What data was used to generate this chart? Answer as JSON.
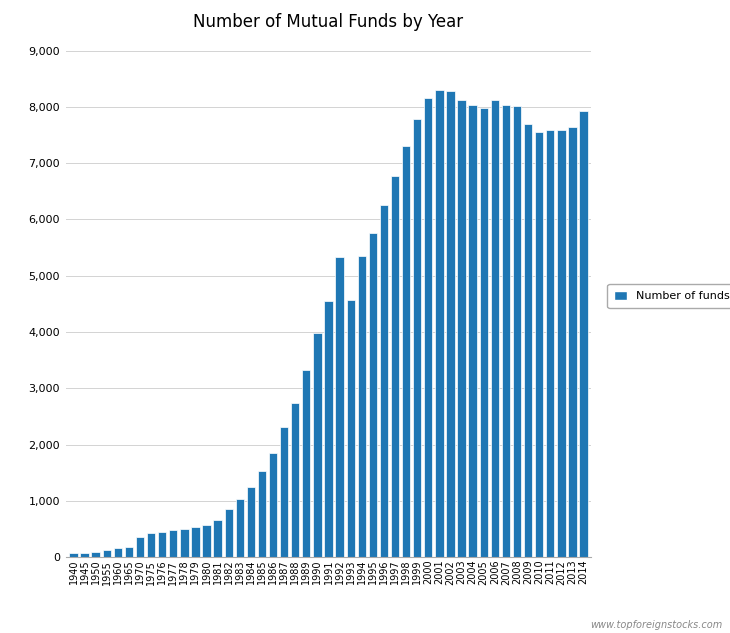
{
  "title": "Number of Mutual Funds by Year",
  "bar_color": "#1F77B4",
  "bar_edge_color": "#1F77B4",
  "legend_label": "Number of funds",
  "legend_color": "#1F77B4",
  "watermark": "www.topforeignstocks.com",
  "ylim": [
    0,
    9000
  ],
  "yticks": [
    0,
    1000,
    2000,
    3000,
    4000,
    5000,
    6000,
    7000,
    8000,
    9000
  ],
  "years": [
    1940,
    1945,
    1950,
    1955,
    1960,
    1965,
    1970,
    1975,
    1976,
    1977,
    1978,
    1979,
    1980,
    1981,
    1982,
    1983,
    1984,
    1985,
    1986,
    1987,
    1988,
    1989,
    1990,
    1991,
    1992,
    1993,
    1994,
    1995,
    1996,
    1997,
    1998,
    1999,
    2000,
    2001,
    2002,
    2003,
    2004,
    2005,
    2006,
    2007,
    2008,
    2009,
    2010,
    2011,
    2012,
    2013,
    2014
  ],
  "values": [
    68,
    73,
    98,
    125,
    160,
    170,
    361,
    426,
    452,
    477,
    505,
    526,
    564,
    665,
    857,
    1026,
    1246,
    1528,
    1843,
    2312,
    2737,
    3323,
    3976,
    4558,
    5325,
    4572,
    5357,
    5761,
    6254,
    6778,
    7314,
    7791,
    8155,
    8307,
    8279,
    8126,
    8041,
    7977,
    8117,
    8029,
    8022,
    7691,
    7555,
    7581,
    7596,
    7650,
    7923
  ]
}
